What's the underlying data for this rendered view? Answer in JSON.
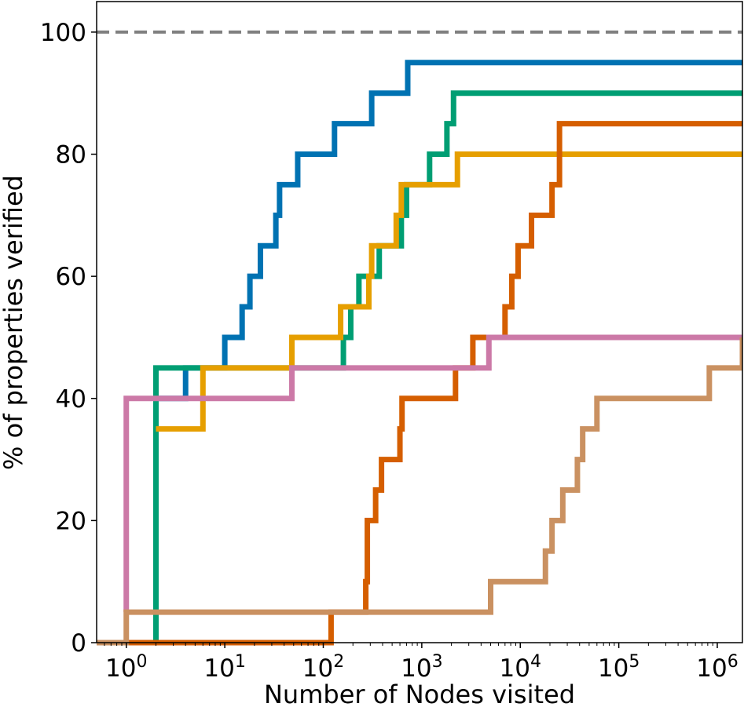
{
  "chart_data": {
    "type": "line",
    "step": true,
    "xlabel": "Number of Nodes visited",
    "ylabel": "% of properties verified",
    "xscale": "log",
    "xlim": [
      0.5,
      1800000
    ],
    "ylim": [
      0,
      105
    ],
    "x_ticks": [
      {
        "value": 1,
        "base": "10",
        "exp": "0"
      },
      {
        "value": 10,
        "base": "10",
        "exp": "1"
      },
      {
        "value": 100,
        "base": "10",
        "exp": "2"
      },
      {
        "value": 1000,
        "base": "10",
        "exp": "3"
      },
      {
        "value": 10000,
        "base": "10",
        "exp": "4"
      },
      {
        "value": 100000,
        "base": "10",
        "exp": "5"
      },
      {
        "value": 1000000,
        "base": "10",
        "exp": "6"
      }
    ],
    "y_ticks": [
      0,
      20,
      40,
      60,
      80,
      100
    ],
    "reference_line": {
      "y": 100,
      "style": "dashed",
      "color": "#808080"
    },
    "grid": false,
    "legend": "none",
    "series": [
      {
        "color": "#0072b2",
        "points": [
          [
            2,
            40
          ],
          [
            4,
            40
          ],
          [
            4,
            45
          ],
          [
            8,
            45
          ],
          [
            8,
            45
          ],
          [
            10,
            45
          ],
          [
            10,
            50
          ],
          [
            15,
            50
          ],
          [
            15,
            55
          ],
          [
            18,
            55
          ],
          [
            18,
            60
          ],
          [
            23,
            60
          ],
          [
            23,
            65
          ],
          [
            33,
            65
          ],
          [
            33,
            70
          ],
          [
            36,
            70
          ],
          [
            36,
            75
          ],
          [
            55,
            75
          ],
          [
            55,
            80
          ],
          [
            130,
            80
          ],
          [
            130,
            85
          ],
          [
            310,
            85
          ],
          [
            310,
            90
          ],
          [
            720,
            90
          ],
          [
            720,
            95
          ],
          [
            1800000,
            95
          ]
        ]
      },
      {
        "color": "#009e73",
        "points": [
          [
            2,
            0
          ],
          [
            2,
            40
          ],
          [
            2,
            40
          ],
          [
            2,
            45
          ],
          [
            8,
            45
          ],
          [
            8,
            45
          ],
          [
            160,
            45
          ],
          [
            160,
            50
          ],
          [
            190,
            50
          ],
          [
            190,
            55
          ],
          [
            230,
            55
          ],
          [
            230,
            60
          ],
          [
            370,
            60
          ],
          [
            370,
            65
          ],
          [
            620,
            65
          ],
          [
            620,
            70
          ],
          [
            700,
            70
          ],
          [
            700,
            75
          ],
          [
            1200,
            75
          ],
          [
            1200,
            80
          ],
          [
            1800,
            80
          ],
          [
            1800,
            85
          ],
          [
            2100,
            85
          ],
          [
            2100,
            90
          ],
          [
            1800000,
            90
          ]
        ]
      },
      {
        "color": "#e69f00",
        "points": [
          [
            2,
            35
          ],
          [
            6,
            35
          ],
          [
            6,
            45
          ],
          [
            8,
            45
          ],
          [
            8,
            45
          ],
          [
            48,
            45
          ],
          [
            48,
            50
          ],
          [
            150,
            50
          ],
          [
            150,
            55
          ],
          [
            290,
            55
          ],
          [
            290,
            60
          ],
          [
            310,
            60
          ],
          [
            310,
            65
          ],
          [
            550,
            65
          ],
          [
            550,
            70
          ],
          [
            620,
            70
          ],
          [
            620,
            75
          ],
          [
            2300,
            75
          ],
          [
            2300,
            80
          ],
          [
            1800000,
            80
          ]
        ]
      },
      {
        "color": "#d55e00",
        "points": [
          [
            0.5,
            0
          ],
          [
            120,
            0
          ],
          [
            120,
            5
          ],
          [
            270,
            5
          ],
          [
            270,
            10
          ],
          [
            280,
            10
          ],
          [
            280,
            20
          ],
          [
            340,
            20
          ],
          [
            340,
            25
          ],
          [
            390,
            25
          ],
          [
            390,
            30
          ],
          [
            600,
            30
          ],
          [
            600,
            35
          ],
          [
            630,
            35
          ],
          [
            630,
            40
          ],
          [
            2200,
            40
          ],
          [
            2200,
            45
          ],
          [
            3300,
            45
          ],
          [
            3300,
            50
          ],
          [
            7000,
            50
          ],
          [
            7000,
            55
          ],
          [
            8200,
            55
          ],
          [
            8200,
            60
          ],
          [
            9500,
            60
          ],
          [
            9500,
            65
          ],
          [
            13000,
            65
          ],
          [
            13000,
            70
          ],
          [
            21000,
            70
          ],
          [
            21000,
            75
          ],
          [
            25000,
            75
          ],
          [
            25000,
            85
          ],
          [
            1800000,
            85
          ]
        ]
      },
      {
        "color": "#cc79a7",
        "points": [
          [
            1,
            5
          ],
          [
            1,
            40
          ],
          [
            48,
            40
          ],
          [
            48,
            45
          ],
          [
            4800,
            45
          ],
          [
            4800,
            50
          ],
          [
            1800000,
            50
          ]
        ]
      },
      {
        "color": "#ca9161",
        "points": [
          [
            0.5,
            0
          ],
          [
            1,
            0
          ],
          [
            1,
            5
          ],
          [
            5000,
            5
          ],
          [
            5000,
            10
          ],
          [
            18000,
            10
          ],
          [
            18000,
            15
          ],
          [
            21000,
            15
          ],
          [
            21000,
            20
          ],
          [
            27000,
            20
          ],
          [
            27000,
            25
          ],
          [
            38000,
            25
          ],
          [
            38000,
            30
          ],
          [
            43000,
            30
          ],
          [
            43000,
            35
          ],
          [
            60000,
            35
          ],
          [
            60000,
            40
          ],
          [
            830000,
            40
          ],
          [
            830000,
            45
          ],
          [
            1800000,
            45
          ],
          [
            1800000,
            50
          ]
        ]
      }
    ]
  }
}
